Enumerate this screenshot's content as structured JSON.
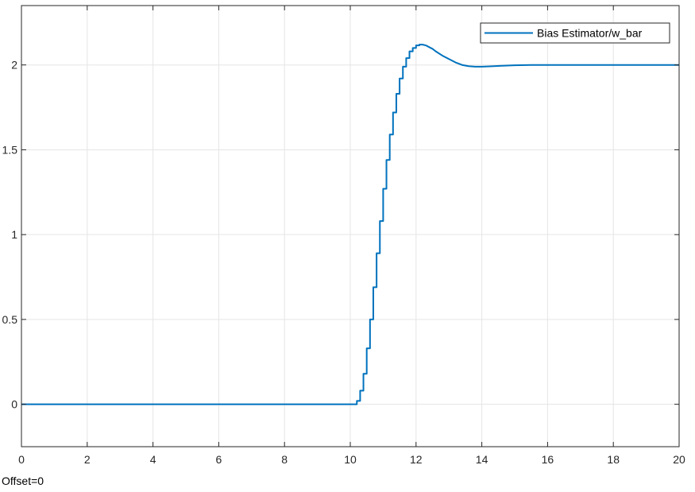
{
  "chart_data": {
    "type": "line",
    "title": "",
    "xlabel": "",
    "ylabel": "",
    "xlim": [
      0,
      20
    ],
    "ylim": [
      -0.25,
      2.35
    ],
    "xticks": [
      0,
      2,
      4,
      6,
      8,
      10,
      12,
      14,
      16,
      18,
      20
    ],
    "xtick_labels": [
      "0",
      "2",
      "4",
      "6",
      "8",
      "10",
      "12",
      "14",
      "16",
      "18",
      "20"
    ],
    "yticks": [
      0,
      0.5,
      1,
      1.5,
      2
    ],
    "ytick_labels": [
      "0",
      "0.5",
      "1",
      "1.5",
      "2"
    ],
    "grid": true,
    "legend_position": "top-right",
    "line_style": "staircase",
    "series": [
      {
        "name": "Bias Estimator/w_bar",
        "color": "#0072BD",
        "x": [
          0,
          10.2,
          10.3,
          10.4,
          10.5,
          10.6,
          10.7,
          10.8,
          10.9,
          11.0,
          11.1,
          11.2,
          11.3,
          11.4,
          11.5,
          11.6,
          11.7,
          11.8,
          11.9,
          12.0,
          12.1,
          12.2,
          12.3,
          12.4,
          12.5,
          12.6,
          12.8,
          13.0,
          13.2,
          13.4,
          13.6,
          13.8,
          14.0,
          14.3,
          14.6,
          15.0,
          15.5,
          16.0,
          17.0,
          18.0,
          19.0,
          20.0
        ],
        "y": [
          0,
          0.02,
          0.08,
          0.18,
          0.33,
          0.5,
          0.69,
          0.89,
          1.08,
          1.27,
          1.44,
          1.59,
          1.72,
          1.83,
          1.92,
          1.99,
          2.04,
          2.08,
          2.1,
          2.115,
          2.12,
          2.12,
          2.115,
          2.105,
          2.095,
          2.08,
          2.055,
          2.035,
          2.015,
          2.0,
          1.993,
          1.99,
          1.99,
          1.992,
          1.995,
          1.998,
          2.0,
          2.0,
          2.0,
          2.0,
          2.0,
          2.0
        ]
      }
    ]
  },
  "offset_label": "Offset=0",
  "colors": {
    "grid": "#e5e5e5",
    "axes": "#262626",
    "background": "#ffffff"
  }
}
